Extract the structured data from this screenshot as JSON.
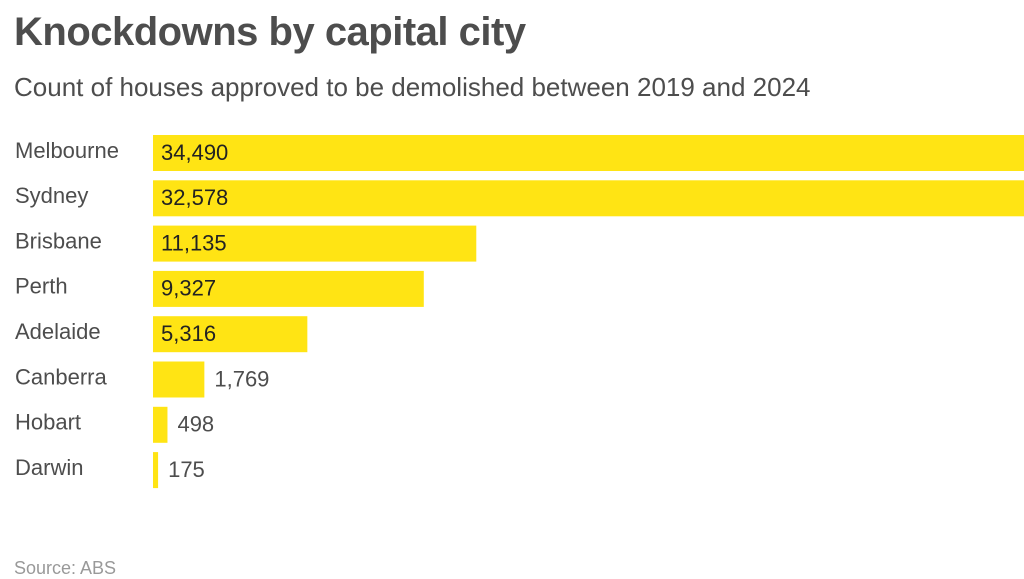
{
  "chart_data": {
    "type": "bar",
    "orientation": "horizontal",
    "title": "Knockdowns by capital city",
    "subtitle": "Count of houses approved to be demolished between 2019 and 2024",
    "categories": [
      "Melbourne",
      "Sydney",
      "Brisbane",
      "Perth",
      "Adelaide",
      "Canberra",
      "Hobart",
      "Darwin"
    ],
    "values": [
      34490,
      32578,
      11135,
      9327,
      5316,
      1769,
      498,
      175
    ],
    "value_labels": [
      "34,490",
      "32,578",
      "11,135",
      "9,327",
      "5,316",
      "1,769",
      "498",
      "175"
    ],
    "xlim": [
      0,
      30000
    ],
    "bar_color": "#ffe414",
    "label_color": "#4d4d4d",
    "grid": false,
    "legend": "none",
    "source": "Source: ABS"
  }
}
